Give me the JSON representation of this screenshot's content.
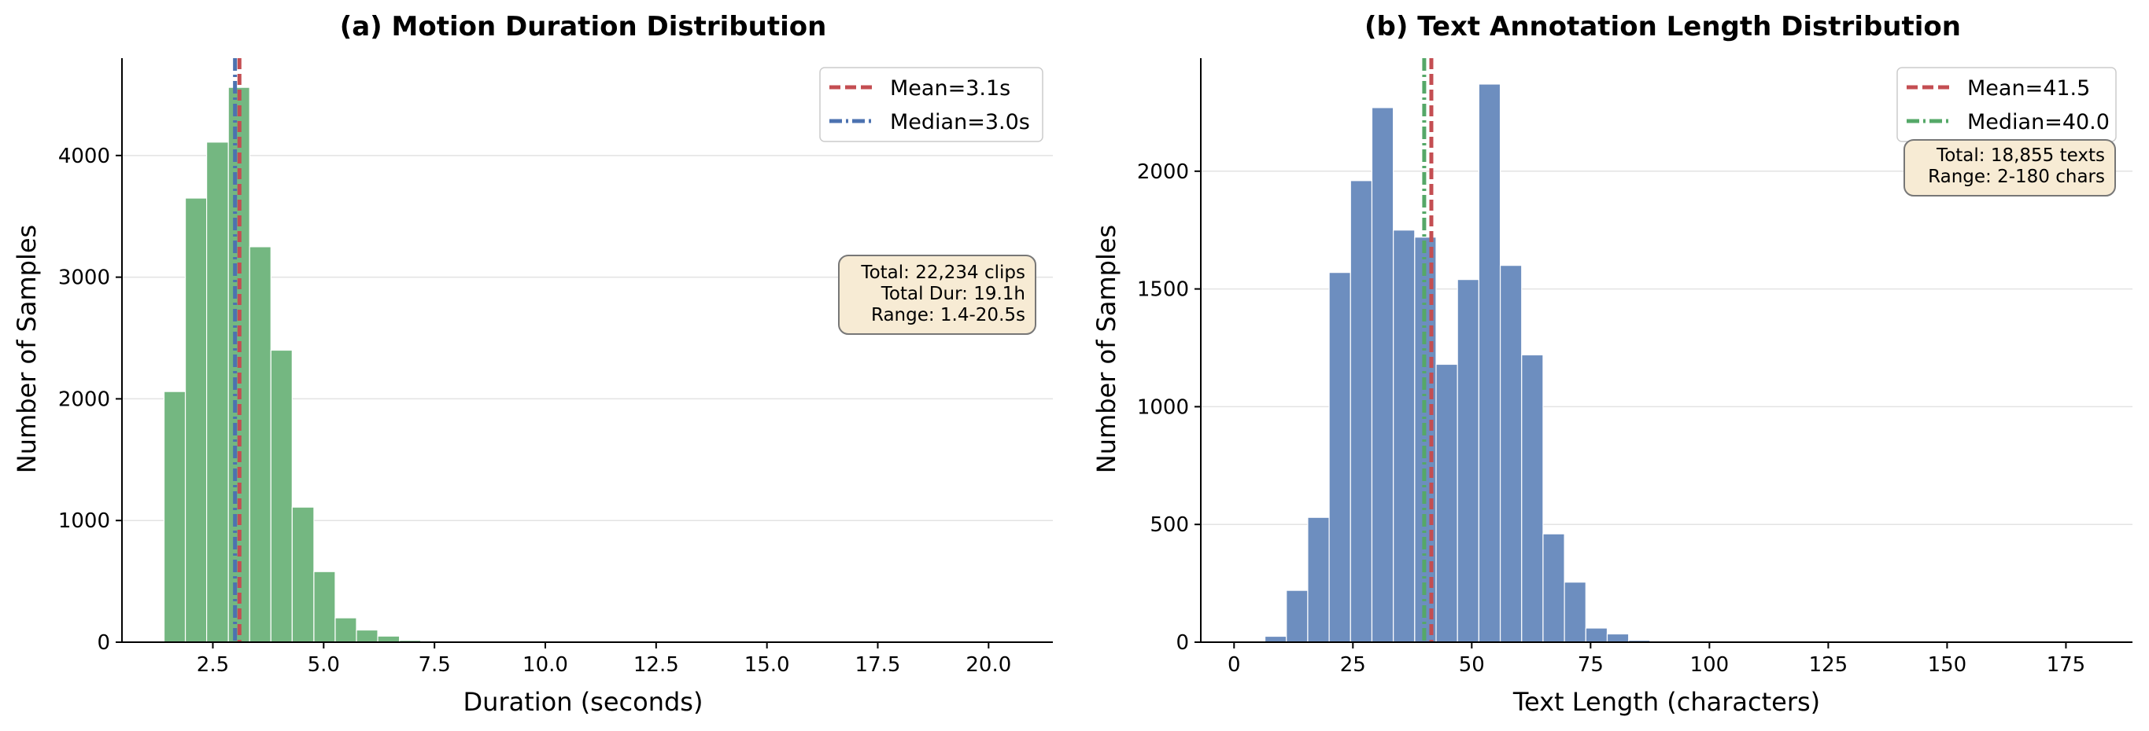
{
  "chart_data": [
    {
      "type": "histogram",
      "title": "(a) Motion Duration Distribution",
      "xlabel": "Duration (seconds)",
      "ylabel": "Number of Samples",
      "xlim": [
        0.45,
        21.45
      ],
      "ylim": [
        0,
        4800
      ],
      "xticks": [
        2.5,
        5.0,
        7.5,
        10.0,
        12.5,
        15.0,
        17.5,
        20.0
      ],
      "xtick_labels": [
        "2.5",
        "5.0",
        "7.5",
        "10.0",
        "12.5",
        "15.0",
        "17.5",
        "20.0"
      ],
      "yticks": [
        0,
        1000,
        2000,
        3000,
        4000
      ],
      "ytick_labels": [
        "0",
        "1000",
        "2000",
        "3000",
        "4000"
      ],
      "grid": "y",
      "bar_color": "#74b781",
      "bins": [
        {
          "x0": 1.4,
          "x1": 1.88,
          "count": 2060
        },
        {
          "x0": 1.88,
          "x1": 2.36,
          "count": 3650
        },
        {
          "x0": 2.36,
          "x1": 2.85,
          "count": 4110
        },
        {
          "x0": 2.85,
          "x1": 3.33,
          "count": 4560
        },
        {
          "x0": 3.33,
          "x1": 3.81,
          "count": 3250
        },
        {
          "x0": 3.81,
          "x1": 4.29,
          "count": 2400
        },
        {
          "x0": 4.29,
          "x1": 4.78,
          "count": 1110
        },
        {
          "x0": 4.78,
          "x1": 5.26,
          "count": 580
        },
        {
          "x0": 5.26,
          "x1": 5.74,
          "count": 200
        },
        {
          "x0": 5.74,
          "x1": 6.22,
          "count": 100
        },
        {
          "x0": 6.22,
          "x1": 6.71,
          "count": 50
        },
        {
          "x0": 6.71,
          "x1": 7.19,
          "count": 15
        },
        {
          "x0": 7.19,
          "x1": 7.67,
          "count": 6
        }
      ],
      "vlines": [
        {
          "x": 3.1,
          "color": "#c44e52",
          "style": "dashed",
          "label": "Mean=3.1s"
        },
        {
          "x": 3.0,
          "color": "#4c72b0",
          "style": "dashdot",
          "label": "Median=3.0s"
        }
      ],
      "legend_placement": "top-right",
      "annotation": [
        "Total: 22,234 clips",
        "Total Dur: 19.1h",
        "Range: 1.4-20.5s"
      ],
      "annotation_placement": "right"
    },
    {
      "type": "histogram",
      "title": "(b) Text Annotation Length Distribution",
      "xlabel": "Text Length (characters)",
      "ylabel": "Number of Samples",
      "xlim": [
        -7,
        189
      ],
      "ylim": [
        0,
        2480
      ],
      "xticks": [
        0,
        25,
        50,
        75,
        100,
        125,
        150,
        175
      ],
      "xtick_labels": [
        "0",
        "25",
        "50",
        "75",
        "100",
        "125",
        "150",
        "175"
      ],
      "yticks": [
        0,
        500,
        1000,
        1500,
        2000
      ],
      "ytick_labels": [
        "0",
        "500",
        "1000",
        "1500",
        "2000"
      ],
      "grid": "y",
      "bar_color": "#6d8ebf",
      "bins": [
        {
          "x0": 2.0,
          "x1": 6.5,
          "count": 3
        },
        {
          "x0": 6.5,
          "x1": 11.0,
          "count": 25
        },
        {
          "x0": 11.0,
          "x1": 15.5,
          "count": 220
        },
        {
          "x0": 15.5,
          "x1": 20.0,
          "count": 530
        },
        {
          "x0": 20.0,
          "x1": 24.5,
          "count": 1570
        },
        {
          "x0": 24.5,
          "x1": 29.0,
          "count": 1960
        },
        {
          "x0": 29.0,
          "x1": 33.5,
          "count": 2270
        },
        {
          "x0": 33.5,
          "x1": 38.0,
          "count": 1750
        },
        {
          "x0": 38.0,
          "x1": 42.5,
          "count": 1720
        },
        {
          "x0": 42.5,
          "x1": 47.0,
          "count": 1180
        },
        {
          "x0": 47.0,
          "x1": 51.5,
          "count": 1540
        },
        {
          "x0": 51.5,
          "x1": 56.0,
          "count": 2370
        },
        {
          "x0": 56.0,
          "x1": 60.5,
          "count": 1600
        },
        {
          "x0": 60.5,
          "x1": 65.0,
          "count": 1220
        },
        {
          "x0": 65.0,
          "x1": 69.5,
          "count": 460
        },
        {
          "x0": 69.5,
          "x1": 74.0,
          "count": 255
        },
        {
          "x0": 74.0,
          "x1": 78.5,
          "count": 60
        },
        {
          "x0": 78.5,
          "x1": 83.0,
          "count": 35
        },
        {
          "x0": 83.0,
          "x1": 87.5,
          "count": 8
        },
        {
          "x0": 87.5,
          "x1": 92.0,
          "count": 4
        }
      ],
      "vlines": [
        {
          "x": 41.5,
          "color": "#c44e52",
          "style": "dashed",
          "label": "Mean=41.5"
        },
        {
          "x": 40.0,
          "color": "#55a868",
          "style": "dashdot",
          "label": "Median=40.0"
        }
      ],
      "legend_placement": "top-right",
      "annotation": [
        "Total: 18,855 texts",
        "Range: 2-180 chars"
      ],
      "annotation_placement": "top-right"
    }
  ]
}
